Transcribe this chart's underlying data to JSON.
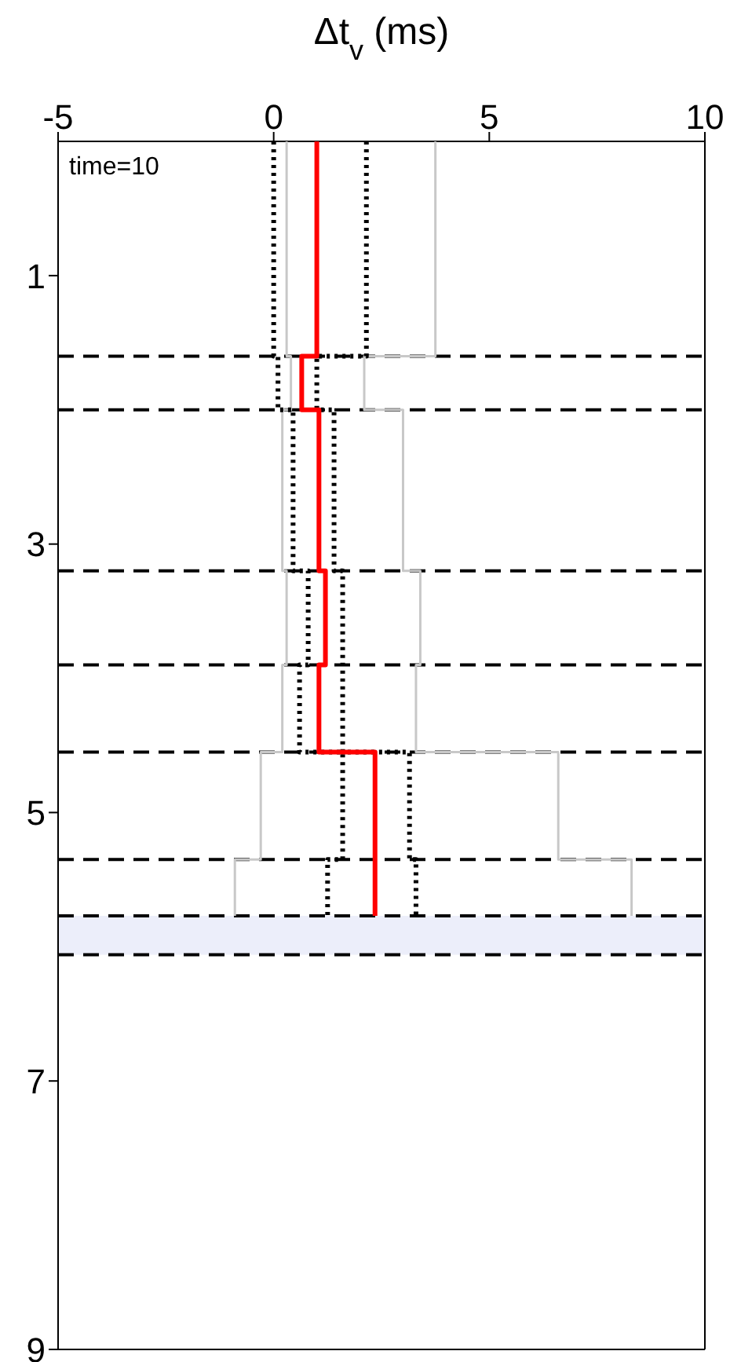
{
  "chart_data": {
    "type": "line",
    "xlabel": "Δt$_{v}$ (ms)",
    "xlim": [
      -5,
      10
    ],
    "xticks": [
      -5,
      0,
      5,
      10
    ],
    "ylim": [
      9,
      0
    ],
    "yticks": [
      1,
      3,
      5,
      7,
      9
    ],
    "marker": "none",
    "annotations": [
      "time=10"
    ],
    "series": [
      {
        "color": "#c8c8c8",
        "line_style": "solid",
        "x": [
          0.3,
          0.3,
          0.4,
          0.4,
          0.2,
          0.2,
          0.3,
          0.3,
          0.2,
          0.2,
          -0.3,
          -0.3,
          -0.9,
          -0.9
        ],
        "values": [
          0,
          1.6,
          1.6,
          2.0,
          2.0,
          3.2,
          3.2,
          3.9,
          3.9,
          4.55,
          4.55,
          5.35,
          5.35,
          5.77
        ]
      },
      {
        "color": "#c8c8c8",
        "line_style": "solid",
        "x": [
          3.75,
          3.75,
          2.1,
          2.1,
          3.0,
          3.0,
          3.4,
          3.4,
          3.3,
          3.3,
          6.6,
          6.6,
          8.3,
          8.3
        ],
        "values": [
          0,
          1.6,
          1.6,
          2.0,
          2.0,
          3.2,
          3.2,
          3.9,
          3.9,
          4.55,
          4.55,
          5.35,
          5.35,
          5.77
        ]
      },
      {
        "color": "#000000",
        "line_style": "dotted",
        "x": [
          0,
          0,
          0.1,
          0.1,
          0.45,
          0.45,
          0.8,
          0.8,
          0.6,
          0.6,
          1.6,
          1.6,
          1.25,
          1.25
        ],
        "values": [
          0,
          1.6,
          1.6,
          2.0,
          2.0,
          3.2,
          3.2,
          3.9,
          3.9,
          4.55,
          4.55,
          5.35,
          5.35,
          5.77
        ]
      },
      {
        "color": "#000000",
        "line_style": "dotted",
        "x": [
          2.15,
          2.15,
          1.0,
          1.0,
          1.4,
          1.4,
          1.6,
          1.6,
          1.6,
          1.6,
          3.15,
          3.15,
          3.3,
          3.3
        ],
        "values": [
          0,
          1.6,
          1.6,
          2.0,
          2.0,
          3.2,
          3.2,
          3.9,
          3.9,
          4.55,
          4.55,
          5.35,
          5.35,
          5.77
        ]
      },
      {
        "color": "#ff0000",
        "line_style": "solid",
        "x": [
          1.0,
          1.0,
          0.65,
          0.65,
          1.05,
          1.05,
          1.2,
          1.2,
          1.05,
          1.05,
          2.35,
          2.35
        ],
        "values": [
          0,
          1.6,
          1.6,
          2.0,
          2.0,
          3.2,
          3.2,
          3.9,
          3.9,
          4.55,
          4.55,
          5.77
        ]
      }
    ],
    "ref_lines": [
      {
        "axis": "y",
        "value": 1.6,
        "line_style": "dashed",
        "color": "#000000"
      },
      {
        "axis": "y",
        "value": 2.0,
        "line_style": "dashed",
        "color": "#000000"
      },
      {
        "axis": "y",
        "value": 3.2,
        "line_style": "dashed",
        "color": "#000000"
      },
      {
        "axis": "y",
        "value": 3.9,
        "line_style": "dashed",
        "color": "#000000"
      },
      {
        "axis": "y",
        "value": 4.55,
        "line_style": "dashed",
        "color": "#000000"
      },
      {
        "axis": "y",
        "value": 5.35,
        "line_style": "dashed",
        "color": "#000000"
      },
      {
        "axis": "y",
        "value": 5.77,
        "line_style": "dashed",
        "color": "#000000"
      },
      {
        "axis": "y",
        "value": 6.06,
        "line_style": "dashed",
        "color": "#000000"
      }
    ],
    "bands": [
      {
        "axis": "y",
        "from": 5.77,
        "to": 6.06,
        "color": "#eceefa"
      }
    ]
  }
}
